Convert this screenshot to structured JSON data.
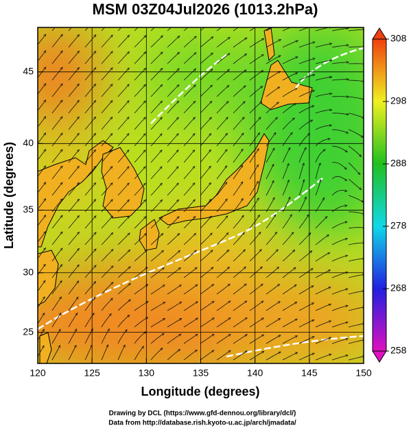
{
  "title": "MSM 03Z04Jul2026 (1013.2hPa)",
  "map": {
    "xlabel": "Longitude (degrees)",
    "ylabel": "Latitude (degrees)",
    "xlim": [
      120,
      150
    ],
    "ylim": [
      22.3,
      47.9
    ],
    "xticks": [
      120,
      125,
      130,
      135,
      140,
      145,
      150
    ],
    "yticks": [
      25,
      30,
      35,
      40,
      45
    ],
    "projection": "mercator",
    "grid": true
  },
  "colorbar": {
    "lim": [
      258,
      308
    ],
    "ticks": [
      258,
      268,
      278,
      288,
      298,
      308
    ],
    "colors": [
      "#e010c0",
      "#2020e0",
      "#10d8e8",
      "#20c020",
      "#f0f020",
      "#f04010"
    ]
  },
  "footer": [
    "Drawing by DCL (https://www.gfd-dennou.org/library/dcl/)",
    "Data from http://database.rish.kyoto-u.ac.jp/arch/jmadata/"
  ]
}
